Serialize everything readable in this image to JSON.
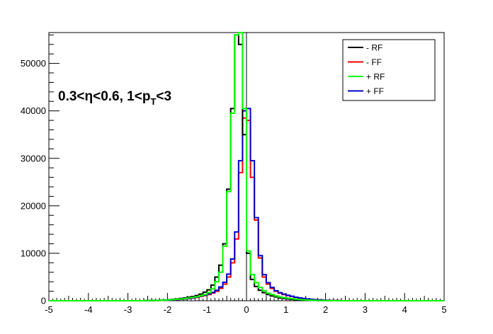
{
  "chart_data": {
    "type": "line",
    "subtype": "step-histogram",
    "title": "",
    "xlabel": "",
    "ylabel": "",
    "xlim": [
      -5,
      5
    ],
    "ylim": [
      0,
      56500
    ],
    "x_ticks": [
      -5,
      -4,
      -3,
      -2,
      -1,
      0,
      1,
      2,
      3,
      4,
      5
    ],
    "y_ticks": [
      0,
      10000,
      20000,
      30000,
      40000,
      50000
    ],
    "bin_width": 0.1,
    "annotation": {
      "part1": "0.3<η<0.6, 1<p",
      "sub": "T",
      "part2": "<3"
    },
    "legend_position": "top-right",
    "x_bin_edges": [
      -5.0,
      -4.9,
      -4.8,
      -4.7,
      -4.6,
      -4.5,
      -4.4,
      -4.3,
      -4.2,
      -4.1,
      -4.0,
      -3.9,
      -3.8,
      -3.7,
      -3.6,
      -3.5,
      -3.4,
      -3.3,
      -3.2,
      -3.1,
      -3.0,
      -2.9,
      -2.8,
      -2.7,
      -2.6,
      -2.5,
      -2.4,
      -2.3,
      -2.2,
      -2.1,
      -2.0,
      -1.9,
      -1.8,
      -1.7,
      -1.6,
      -1.5,
      -1.4,
      -1.3,
      -1.2,
      -1.1,
      -1.0,
      -0.9,
      -0.8,
      -0.7,
      -0.6,
      -0.5,
      -0.4,
      -0.3,
      -0.2,
      -0.1,
      0.0,
      0.1,
      0.2,
      0.3,
      0.4,
      0.5,
      0.6,
      0.7,
      0.8,
      0.9,
      1.0,
      1.1,
      1.2,
      1.3,
      1.4,
      1.5,
      1.6,
      1.7,
      1.8,
      1.9,
      2.0,
      2.1,
      2.2,
      2.3,
      2.4,
      2.5,
      2.6,
      2.7,
      2.8,
      2.9,
      3.0,
      3.1,
      3.2,
      3.3,
      3.4,
      3.5,
      3.6,
      3.7,
      3.8,
      3.9,
      4.0,
      4.1,
      4.2,
      4.3,
      4.4,
      4.5,
      4.6,
      4.7,
      4.8,
      4.9,
      5.0
    ],
    "series": [
      {
        "name": "- RF",
        "color": "#000000",
        "values": [
          0,
          0,
          0,
          0,
          0,
          0,
          0,
          0,
          0,
          0,
          0,
          0,
          0,
          0,
          0,
          0,
          0,
          0,
          0,
          0,
          0,
          0,
          0,
          0,
          20,
          30,
          50,
          80,
          120,
          170,
          230,
          300,
          380,
          480,
          600,
          740,
          900,
          1100,
          1400,
          1800,
          2300,
          3300,
          5000,
          7500,
          12000,
          23500,
          40500,
          56000,
          54000,
          35000,
          10000,
          4500,
          3000,
          2200,
          1700,
          1300,
          1000,
          800,
          600,
          480,
          380,
          300,
          230,
          180,
          140,
          100,
          80,
          60,
          40,
          30,
          20,
          10,
          5,
          0,
          0,
          0,
          0,
          0,
          0,
          0,
          0,
          0,
          0,
          0,
          0,
          0,
          0,
          0,
          0,
          0,
          0,
          0,
          0,
          0,
          0,
          0,
          0,
          0,
          0,
          0,
          0
        ]
      },
      {
        "name": "- FF",
        "color": "#ff0000",
        "values": [
          0,
          0,
          0,
          0,
          0,
          0,
          0,
          0,
          0,
          0,
          0,
          0,
          0,
          0,
          0,
          0,
          0,
          0,
          0,
          0,
          0,
          0,
          0,
          0,
          10,
          20,
          30,
          50,
          70,
          100,
          130,
          180,
          230,
          290,
          360,
          450,
          560,
          700,
          900,
          1100,
          1300,
          1600,
          2000,
          2600,
          3500,
          5000,
          8000,
          13000,
          27000,
          38500,
          38000,
          26000,
          17000,
          9000,
          5000,
          3500,
          2600,
          2000,
          1600,
          1300,
          1100,
          900,
          700,
          560,
          450,
          360,
          290,
          230,
          180,
          130,
          100,
          70,
          50,
          30,
          20,
          10,
          0,
          0,
          0,
          0,
          0,
          0,
          0,
          0,
          0,
          0,
          0,
          0,
          0,
          0,
          0,
          0,
          0,
          0,
          0,
          0,
          0,
          0,
          0,
          0,
          0
        ]
      },
      {
        "name": "+ RF",
        "color": "#00ff00",
        "values": [
          0,
          0,
          0,
          0,
          0,
          0,
          0,
          0,
          0,
          0,
          0,
          0,
          0,
          0,
          0,
          0,
          0,
          0,
          0,
          0,
          0,
          0,
          0,
          0,
          15,
          25,
          40,
          60,
          90,
          130,
          180,
          240,
          300,
          380,
          470,
          580,
          700,
          850,
          1050,
          1300,
          1700,
          2500,
          4000,
          6000,
          11500,
          23000,
          39500,
          56000,
          56500,
          40500,
          10500,
          5500,
          3800,
          2800,
          2100,
          1600,
          1300,
          1000,
          800,
          650,
          520,
          420,
          330,
          260,
          200,
          150,
          110,
          80,
          55,
          35,
          20,
          10,
          0,
          0,
          0,
          0,
          0,
          0,
          0,
          0,
          0,
          0,
          0,
          0,
          0,
          0,
          0,
          0,
          0,
          0,
          0,
          0,
          0,
          0,
          0,
          0,
          0,
          0,
          0,
          0
        ]
      },
      {
        "name": "+ FF",
        "color": "#0000cc",
        "values": [
          0,
          0,
          0,
          0,
          0,
          0,
          0,
          0,
          0,
          0,
          0,
          0,
          0,
          0,
          0,
          0,
          0,
          0,
          0,
          0,
          0,
          0,
          0,
          0,
          10,
          20,
          30,
          50,
          70,
          100,
          140,
          190,
          250,
          320,
          400,
          500,
          620,
          780,
          980,
          1200,
          1450,
          1750,
          2200,
          2900,
          3900,
          5600,
          8800,
          14500,
          29500,
          40000,
          40500,
          29500,
          17500,
          9500,
          5500,
          3800,
          2800,
          2100,
          1700,
          1400,
          1150,
          950,
          750,
          600,
          480,
          380,
          300,
          230,
          170,
          120,
          80,
          50,
          30,
          15,
          5,
          0,
          0,
          0,
          0,
          0,
          0,
          0,
          0,
          0,
          0,
          0,
          0,
          0,
          0,
          0,
          0,
          0,
          0,
          0,
          0,
          0,
          0,
          0,
          0,
          0
        ]
      }
    ]
  }
}
